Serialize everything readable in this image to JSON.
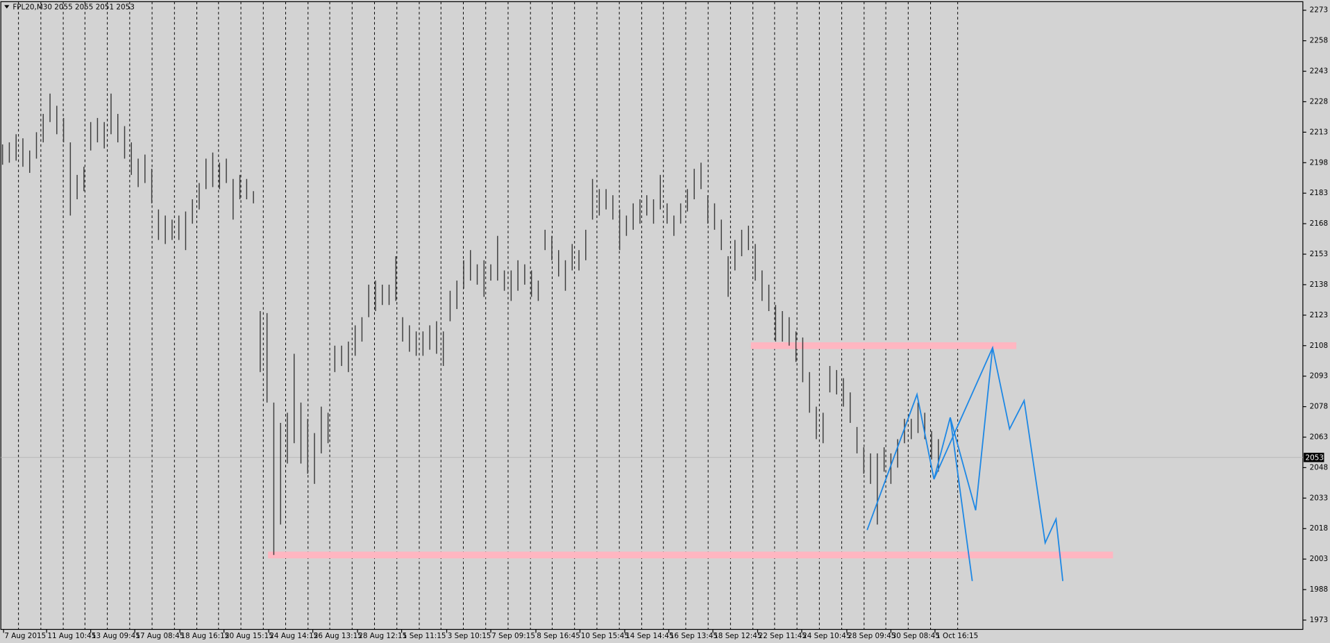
{
  "chart_data": {
    "type": "range-bar",
    "title": "FPL20,M30  2055 2055 2051 2053",
    "xlim": [
      0,
      192
    ],
    "ylim": [
      1968.4,
      2277.2
    ],
    "yticks": [
      2273,
      2258,
      2243,
      2228,
      2213,
      2198,
      2183,
      2168,
      2153,
      2138,
      2123,
      2108,
      2093,
      2078,
      2063,
      2048,
      2033,
      2018,
      2003,
      1988,
      1973
    ],
    "xticks": [
      {
        "value": 0.4,
        "label": "7 Aug 2015"
      },
      {
        "value": 6.75,
        "label": "11 Aug 10:45"
      },
      {
        "value": 13.25,
        "label": "13 Aug 09:45"
      },
      {
        "value": 19.75,
        "label": "17 Aug 08:45"
      },
      {
        "value": 26.4,
        "label": "18 Aug 16:15"
      },
      {
        "value": 32.9,
        "label": "20 Aug 15:15"
      },
      {
        "value": 39.5,
        "label": "24 Aug 14:15"
      },
      {
        "value": 46,
        "label": "26 Aug 13:15"
      },
      {
        "value": 52.6,
        "label": "28 Aug 12:15"
      },
      {
        "value": 59.1,
        "label": "1 Sep 11:15"
      },
      {
        "value": 65.75,
        "label": "3 Sep 10:15"
      },
      {
        "value": 72.25,
        "label": "7 Sep 09:15"
      },
      {
        "value": 78.9,
        "label": "8 Sep 16:45"
      },
      {
        "value": 85.4,
        "label": "10 Sep 15:45"
      },
      {
        "value": 92,
        "label": "14 Sep 14:45"
      },
      {
        "value": 98.5,
        "label": "16 Sep 13:45"
      },
      {
        "value": 105,
        "label": "18 Sep 12:45"
      },
      {
        "value": 111.6,
        "label": "22 Sep 11:45"
      },
      {
        "value": 118.1,
        "label": "24 Sep 10:45"
      },
      {
        "value": 124.75,
        "label": "28 Sep 09:45"
      },
      {
        "value": 131.25,
        "label": "30 Sep 08:45"
      },
      {
        "value": 137.75,
        "label": "1 Oct 16:15"
      }
    ],
    "day_separators": [
      2.6,
      5.9,
      9.2,
      12.4,
      15.7,
      19.0,
      22.3,
      25.6,
      28.9,
      32.1,
      35.4,
      38.7,
      42.0,
      45.3,
      48.5,
      51.8,
      55.1,
      58.4,
      61.7,
      64.9,
      68.2,
      71.5,
      74.8,
      78.1,
      81.3,
      84.6,
      87.9,
      91.2,
      94.5,
      97.7,
      101.0,
      104.3,
      107.6,
      110.9,
      114.1,
      117.4,
      120.7,
      124.0,
      127.3,
      130.5,
      133.8,
      137.1,
      141.1
    ],
    "color": "#3c3c3c",
    "high": [
      2207,
      2208,
      2212,
      2210,
      2204,
      2213,
      2222,
      2232,
      2226,
      2220,
      2208,
      2192,
      2196,
      2218,
      2220,
      2218,
      2232,
      2222,
      2216,
      2208,
      2200,
      2202,
      2195,
      2175,
      2172,
      2170,
      2172,
      2174,
      2180,
      2188,
      2200,
      2203,
      2198,
      2200,
      2190,
      2192,
      2190,
      2184,
      2125,
      2124,
      2080,
      2070,
      2075,
      2104,
      2080,
      2072,
      2065,
      2078,
      2075,
      2108,
      2108,
      2110,
      2118,
      2122,
      2138,
      2140,
      2138,
      2138,
      2152,
      2122,
      2118,
      2115,
      2115,
      2118,
      2120,
      2115,
      2135,
      2140,
      2150,
      2155,
      2148,
      2150,
      2148,
      2162,
      2145,
      2145,
      2150,
      2148,
      2145,
      2140,
      2165,
      2162,
      2155,
      2150,
      2158,
      2155,
      2165,
      2190,
      2185,
      2185,
      2182,
      2175,
      2172,
      2178,
      2180,
      2182,
      2180,
      2192,
      2178,
      2172,
      2178,
      2185,
      2195,
      2198,
      2182,
      2178,
      2170,
      2152,
      2160,
      2165,
      2167,
      2158,
      2145,
      2138,
      2128,
      2125,
      2122,
      2115,
      2112,
      2095,
      2078,
      2075,
      2098,
      2096,
      2092,
      2085,
      2068,
      2058,
      2055,
      2055,
      2058,
      2055,
      2062,
      2072,
      2072,
      2080,
      2075,
      2066,
      2062
    ],
    "low": [
      2197,
      2198,
      2199,
      2196,
      2193,
      2200,
      2208,
      2218,
      2212,
      2208,
      2172,
      2180,
      2184,
      2204,
      2208,
      2205,
      2212,
      2208,
      2200,
      2192,
      2186,
      2188,
      2178,
      2160,
      2158,
      2160,
      2160,
      2155,
      2168,
      2175,
      2185,
      2186,
      2185,
      2188,
      2170,
      2180,
      2180,
      2178,
      2095,
      2080,
      2005,
      2020,
      2050,
      2060,
      2050,
      2045,
      2040,
      2055,
      2060,
      2095,
      2098,
      2095,
      2103,
      2110,
      2122,
      2125,
      2128,
      2128,
      2130,
      2110,
      2105,
      2103,
      2103,
      2106,
      2104,
      2098,
      2120,
      2126,
      2136,
      2140,
      2138,
      2132,
      2140,
      2140,
      2135,
      2130,
      2135,
      2138,
      2132,
      2130,
      2155,
      2150,
      2142,
      2135,
      2145,
      2145,
      2150,
      2170,
      2172,
      2175,
      2170,
      2155,
      2162,
      2165,
      2168,
      2172,
      2168,
      2175,
      2168,
      2162,
      2168,
      2174,
      2180,
      2185,
      2168,
      2165,
      2155,
      2132,
      2145,
      2152,
      2155,
      2140,
      2130,
      2125,
      2110,
      2110,
      2108,
      2100,
      2090,
      2075,
      2062,
      2060,
      2085,
      2084,
      2078,
      2070,
      2055,
      2045,
      2040,
      2020,
      2046,
      2040,
      2048,
      2060,
      2062,
      2065,
      2062,
      2052,
      2046
    ],
    "zones": [
      {
        "y": 2108,
        "x": [
          110.6,
          149.75
        ],
        "color": "#ffb6c1"
      },
      {
        "y": 2005,
        "x": [
          39.4,
          164
        ],
        "color": "#ffb6c1"
      }
    ],
    "projections": [
      {
        "color": "#1e88e5",
        "x": [
          127.75,
          135.1,
          137.6,
          140,
          143.25
        ],
        "y": [
          2017.3,
          2084,
          2042.3,
          2072.7,
          1992.2
        ]
      },
      {
        "color": "#1e88e5",
        "x": [
          137.6,
          146.25,
          148.75,
          150.9,
          154,
          155.6,
          156.6
        ],
        "y": [
          2042.3,
          2107,
          2067,
          2081,
          2011,
          2022.7,
          1992.2
        ]
      },
      {
        "color": "#1e88e5",
        "x": [
          140,
          143.75,
          146.25
        ],
        "y": [
          2072.7,
          2027,
          2107
        ]
      }
    ],
    "last_price": 2053
  }
}
